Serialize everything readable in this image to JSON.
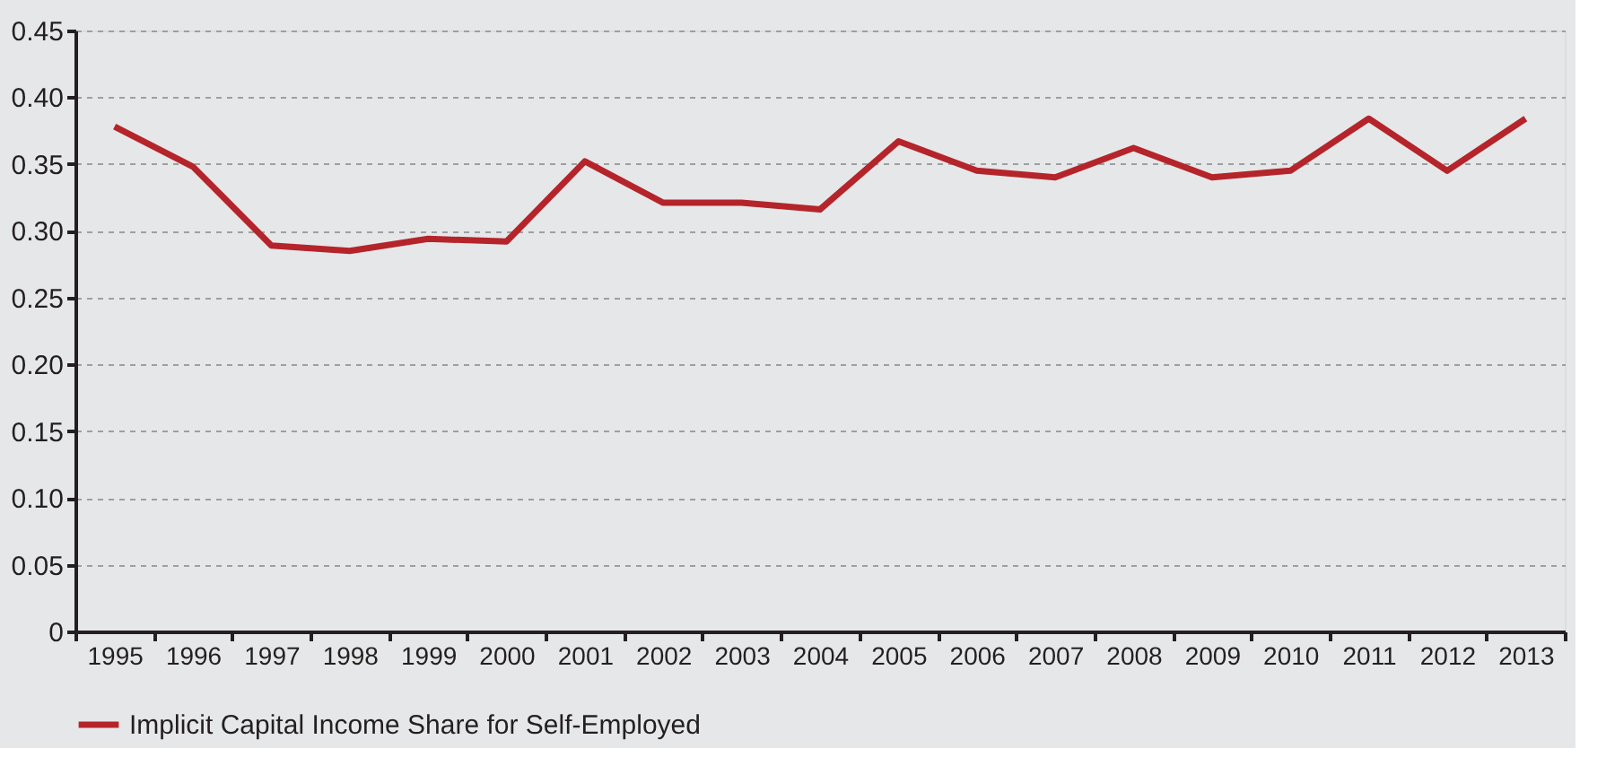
{
  "chart_data": {
    "type": "line",
    "categories": [
      "1995",
      "1996",
      "1997",
      "1998",
      "1999",
      "2000",
      "2001",
      "2002",
      "2003",
      "2004",
      "2005",
      "2006",
      "2007",
      "2008",
      "2009",
      "2010",
      "2011",
      "2012",
      "2013"
    ],
    "series": [
      {
        "name": "Implicit Capital Income Share for Self-Employed",
        "color": "#b5242a",
        "values": [
          0.378,
          0.348,
          0.289,
          0.285,
          0.294,
          0.292,
          0.352,
          0.321,
          0.321,
          0.316,
          0.367,
          0.345,
          0.34,
          0.362,
          0.34,
          0.345,
          0.384,
          0.345,
          0.384
        ]
      }
    ],
    "ylim": [
      0,
      0.45
    ],
    "yticks": [
      0,
      {
        "value": 0.05,
        "label": "0.05"
      },
      {
        "value": 0.1,
        "label": "0.10"
      },
      {
        "value": 0.15,
        "label": "0.15"
      },
      {
        "value": 0.2,
        "label": "0.20"
      },
      {
        "value": 0.25,
        "label": "0.25"
      },
      {
        "value": 0.3,
        "label": "0.30"
      },
      {
        "value": 0.35,
        "label": "0.35"
      },
      {
        "value": 0.4,
        "label": "0.40"
      },
      {
        "value": 0.45,
        "label": "0.45"
      }
    ],
    "grid": "y",
    "legend": "bottom left",
    "marker": "none",
    "line_style": "solid"
  }
}
